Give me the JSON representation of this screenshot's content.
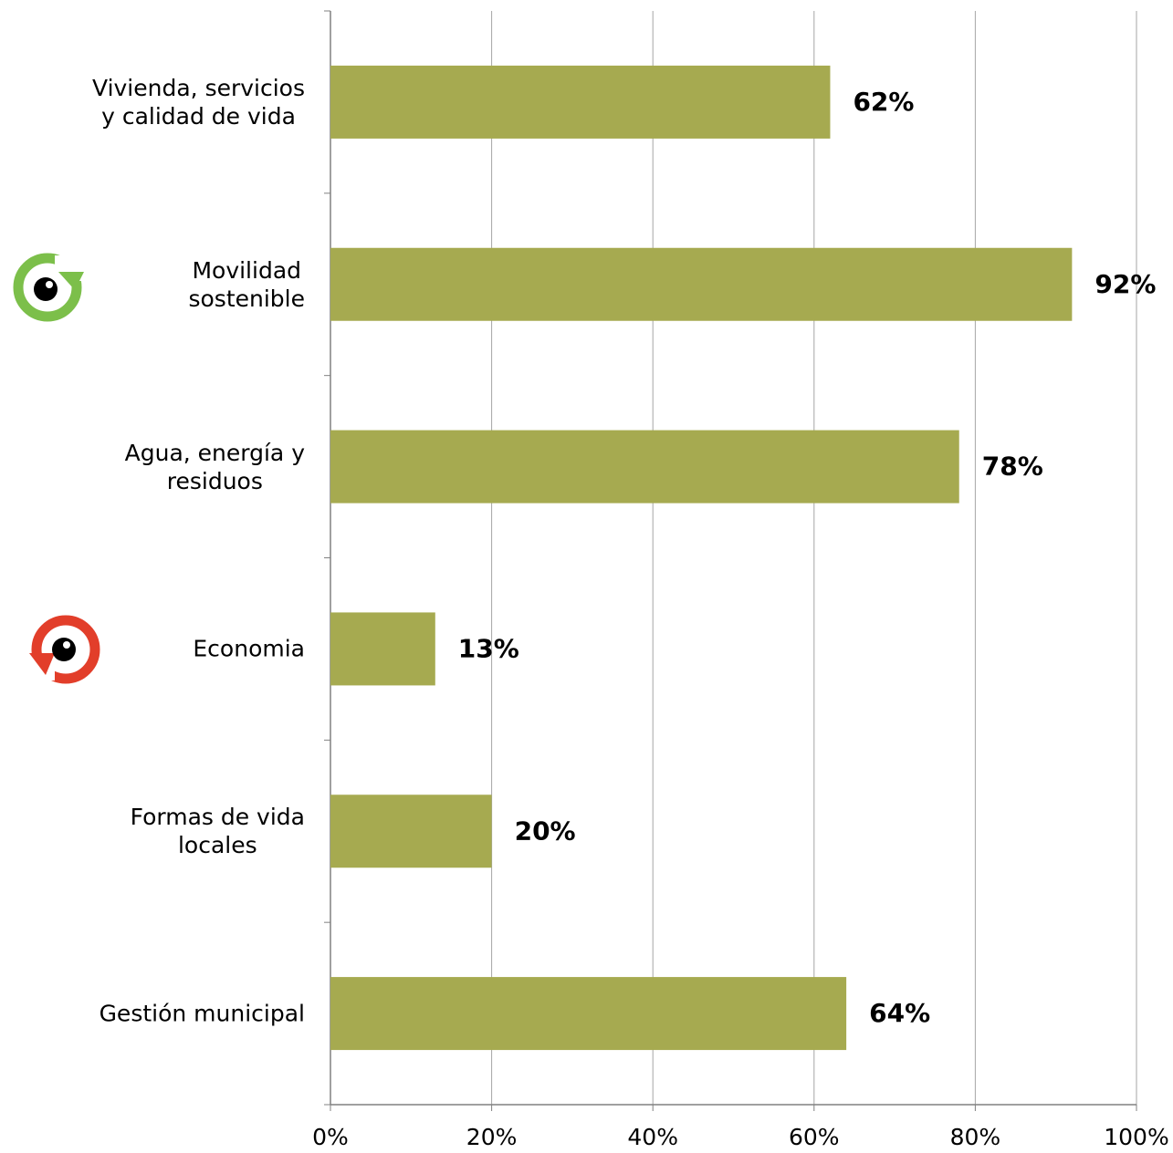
{
  "chart_data": {
    "type": "barh",
    "categories": [
      "Vivienda, servicios\ny calidad de vida",
      "Movilidad\nsostenible",
      "Agua, energía y\nresiduos",
      "Economia",
      "Formas de vida\nlocales",
      "Gestión municipal"
    ],
    "values": [
      62,
      92,
      78,
      13,
      20,
      64
    ],
    "value_labels": [
      "62%",
      "92%",
      "78%",
      "13%",
      "20%",
      "64%"
    ],
    "color": "#a6aa50",
    "xlim": [
      0,
      100
    ],
    "xticks": [
      {
        "value": 0,
        "label": "0%"
      },
      {
        "value": 20,
        "label": "20%"
      },
      {
        "value": 40,
        "label": "40%"
      },
      {
        "value": 60,
        "label": "60%"
      },
      {
        "value": 80,
        "label": "80%"
      },
      {
        "value": 100,
        "label": "100%"
      }
    ],
    "grid": true
  }
}
